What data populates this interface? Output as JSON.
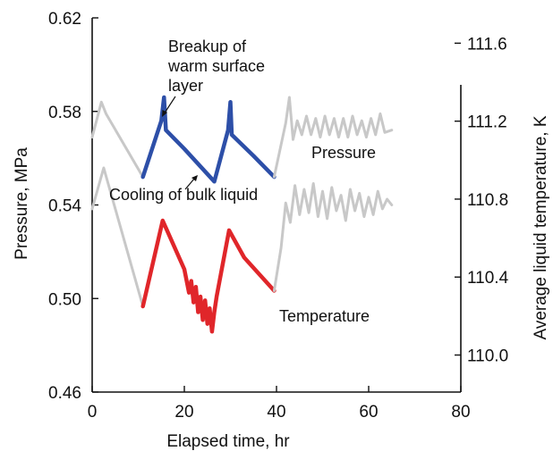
{
  "chart_data": {
    "type": "line",
    "title": "",
    "xlabel": "Elapsed time, hr",
    "ylabel_left": "Pressure, MPa",
    "ylabel_right": "Average liquid temperature, K",
    "xlim": [
      0,
      80
    ],
    "ylim_left": [
      0.46,
      0.62
    ],
    "ylim_right": [
      109.81,
      111.73
    ],
    "x_ticks": [
      "0",
      "20",
      "40",
      "60",
      "80"
    ],
    "y_left_ticks": [
      "0.46",
      "0.50",
      "0.54",
      "0.58",
      "0.62"
    ],
    "y_right_ticks": [
      "110.0",
      "110.4",
      "110.8",
      "111.2",
      "111.6"
    ],
    "grid": false,
    "colors": {
      "gray": "#c8c8c8",
      "blue": "#2d4fa8",
      "red": "#e0262a",
      "axis": "#111111"
    },
    "series": [
      {
        "name": "Pressure",
        "axis": "left",
        "segments": [
          {
            "color": "gray",
            "points": [
              [
                0,
                0.569
              ],
              [
                2,
                0.584
              ],
              [
                3,
                0.579
              ],
              [
                11,
                0.552
              ]
            ]
          },
          {
            "color": "blue",
            "points": [
              [
                11,
                0.552
              ],
              [
                15,
                0.576
              ],
              [
                15.6,
                0.586
              ],
              [
                16,
                0.572
              ],
              [
                20,
                0.564
              ],
              [
                26.5,
                0.55
              ],
              [
                29.5,
                0.572
              ],
              [
                30,
                0.584
              ],
              [
                30.3,
                0.57
              ],
              [
                35,
                0.561
              ],
              [
                39.5,
                0.552
              ]
            ]
          },
          {
            "color": "gray",
            "points": [
              [
                39.5,
                0.552
              ],
              [
                42,
                0.575
              ],
              [
                42.8,
                0.586
              ],
              [
                43.6,
                0.568
              ],
              [
                44.5,
                0.576
              ],
              [
                45.5,
                0.57
              ],
              [
                46.5,
                0.578
              ],
              [
                47.5,
                0.57
              ],
              [
                48.5,
                0.577
              ],
              [
                49.5,
                0.569
              ],
              [
                50.5,
                0.578
              ],
              [
                51.5,
                0.57
              ],
              [
                52.5,
                0.577
              ],
              [
                53.5,
                0.569
              ],
              [
                54.5,
                0.577
              ],
              [
                55.5,
                0.569
              ],
              [
                56.5,
                0.578
              ],
              [
                57.5,
                0.57
              ],
              [
                58.5,
                0.576
              ],
              [
                59.5,
                0.569
              ],
              [
                60.5,
                0.577
              ],
              [
                61.5,
                0.57
              ],
              [
                62.5,
                0.579
              ],
              [
                63.5,
                0.571
              ],
              [
                65,
                0.572
              ]
            ]
          }
        ]
      },
      {
        "name": "Temperature",
        "axis": "right",
        "segments": [
          {
            "color": "gray",
            "points": [
              [
                0,
                110.75
              ],
              [
                2.5,
                110.96
              ],
              [
                11,
                110.25
              ]
            ]
          },
          {
            "color": "red",
            "points": [
              [
                11,
                110.25
              ],
              [
                15.3,
                110.69
              ],
              [
                20,
                110.44
              ],
              [
                21,
                110.32
              ],
              [
                21.5,
                110.38
              ],
              [
                22,
                110.27
              ],
              [
                22.5,
                110.35
              ],
              [
                23,
                110.22
              ],
              [
                23.5,
                110.3
              ],
              [
                24,
                110.18
              ],
              [
                24.5,
                110.28
              ],
              [
                25,
                110.16
              ],
              [
                25.5,
                110.24
              ],
              [
                26,
                110.12
              ],
              [
                26.5,
                110.22
              ],
              [
                27,
                110.3
              ],
              [
                29.7,
                110.64
              ],
              [
                33,
                110.5
              ],
              [
                39.5,
                110.33
              ]
            ]
          },
          {
            "color": "gray",
            "points": [
              [
                39.5,
                110.33
              ],
              [
                41,
                110.55
              ],
              [
                42,
                110.78
              ],
              [
                43,
                110.68
              ],
              [
                44,
                110.87
              ],
              [
                45,
                110.72
              ],
              [
                46,
                110.85
              ],
              [
                47,
                110.73
              ],
              [
                48,
                110.88
              ],
              [
                49,
                110.71
              ],
              [
                50,
                110.84
              ],
              [
                51,
                110.7
              ],
              [
                52,
                110.86
              ],
              [
                53,
                110.74
              ],
              [
                54,
                110.82
              ],
              [
                55,
                110.69
              ],
              [
                56,
                110.85
              ],
              [
                57,
                110.74
              ],
              [
                58,
                110.83
              ],
              [
                59,
                110.71
              ],
              [
                60,
                110.81
              ],
              [
                61,
                110.72
              ],
              [
                62,
                110.84
              ],
              [
                63,
                110.75
              ],
              [
                64,
                110.8
              ],
              [
                65,
                110.77
              ]
            ]
          }
        ]
      }
    ],
    "annotations": {
      "breakup": [
        "Breakup of",
        "warm surface",
        "layer"
      ],
      "cooling": "Cooling of bulk liquid",
      "pressure_label": "Pressure",
      "temperature_label": "Temperature"
    }
  }
}
